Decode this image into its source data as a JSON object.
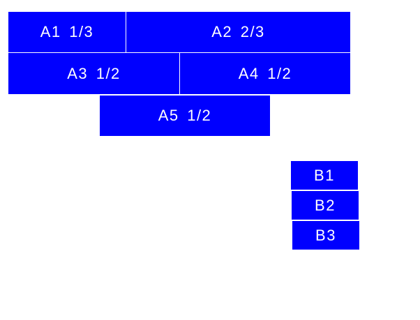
{
  "colors": {
    "box": "#0000ff",
    "text": "#ffffff"
  },
  "group_a": [
    "A1 1/3",
    "A2 2/3",
    "A3 1/2",
    "A4 1/2",
    "A5 1/2"
  ],
  "group_b": [
    "B1",
    "B2",
    "B3"
  ]
}
